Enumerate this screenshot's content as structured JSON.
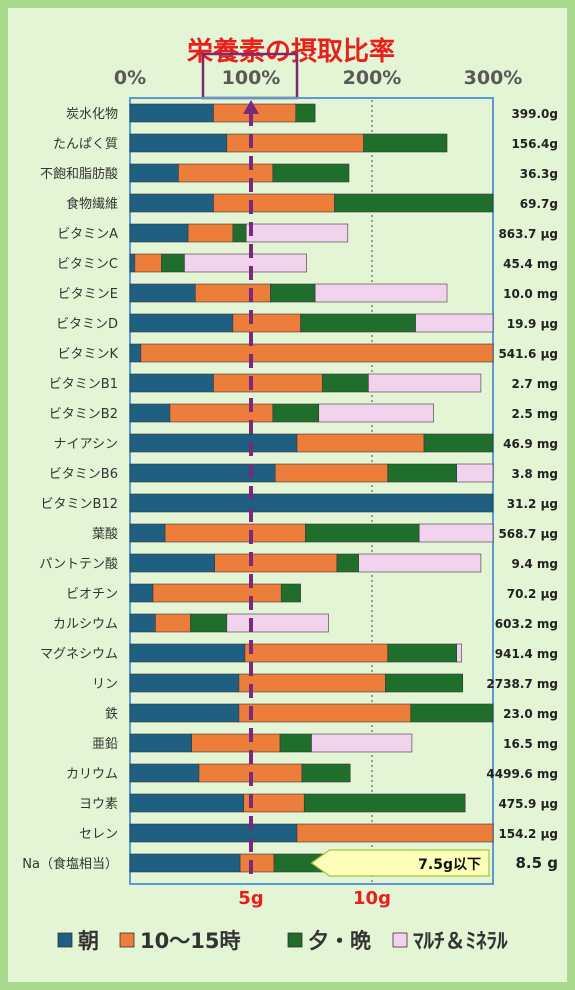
{
  "chart_data": {
    "type": "bar",
    "stacked": true,
    "orientation": "horizontal",
    "title": "栄養素の摂取比率",
    "x_ticks": [
      "0%",
      "100%",
      "200%",
      "300%"
    ],
    "xlim": [
      0,
      300
    ],
    "grid": true,
    "reference_line": {
      "value": 100
    },
    "legend_position": "bottom",
    "series": [
      {
        "name": "朝",
        "color": "#1f5f82"
      },
      {
        "name": "10～15時",
        "color": "#ec7d3a"
      },
      {
        "name": "夕・晩",
        "color": "#1f6e2c"
      },
      {
        "name": "ﾏﾙﾁ＆ﾐﾈﾗﾙ",
        "color": "#f2d3ee"
      }
    ],
    "categories": [
      "炭水化物",
      "たんぱく質",
      "不飽和脂肪酸",
      "食物繊維",
      "ビタミンA",
      "ビタミンC",
      "ビタミンE",
      "ビタミンD",
      "ビタミンK",
      "ビタミンB1",
      "ビタミンB2",
      "ナイアシン",
      "ビタミンB6",
      "ビタミンB12",
      "葉酸",
      "パントテン酸",
      "ビオチン",
      "カルシウム",
      "マグネシウム",
      "リン",
      "鉄",
      "亜鉛",
      "カリウム",
      "ヨウ素",
      "セレン",
      "Na（食塩相当）"
    ],
    "intake_amounts": [
      "399.0g",
      "156.4g",
      "36.3g",
      "69.7g",
      "863.7 μg",
      "45.4 mg",
      "10.0 mg",
      "19.9 μg",
      "541.6 μg",
      "2.7 mg",
      "2.5 mg",
      "46.9 mg",
      "3.8 mg",
      "31.2 μg",
      "568.7 μg",
      "9.4 mg",
      "70.2 μg",
      "603.2 mg",
      "941.4 mg",
      "2738.7 mg",
      "23.0 mg",
      "16.5 mg",
      "4499.6 mg",
      "475.9 μg",
      "154.2 μg",
      "8.5 g"
    ],
    "values": [
      [
        69,
        68,
        16,
        0
      ],
      [
        80,
        113,
        69,
        0
      ],
      [
        40,
        78,
        63,
        0
      ],
      [
        69,
        100,
        133,
        0
      ],
      [
        48,
        37,
        11,
        84
      ],
      [
        4,
        22,
        19,
        101
      ],
      [
        54,
        62,
        37,
        109
      ],
      [
        85,
        56,
        95,
        66
      ],
      [
        9,
        300,
        0,
        0
      ],
      [
        69,
        90,
        38,
        93
      ],
      [
        33,
        85,
        38,
        95
      ],
      [
        138,
        105,
        60,
        0
      ],
      [
        120,
        93,
        57,
        31
      ],
      [
        300,
        0,
        0,
        0
      ],
      [
        29,
        116,
        94,
        64
      ],
      [
        70,
        101,
        18,
        101
      ],
      [
        19,
        106,
        16,
        0
      ],
      [
        21,
        29,
        30,
        84
      ],
      [
        95,
        118,
        57,
        4
      ],
      [
        90,
        121,
        64,
        0
      ],
      [
        90,
        142,
        70,
        0
      ],
      [
        51,
        73,
        26,
        83
      ],
      [
        57,
        85,
        40,
        0
      ],
      [
        94,
        50,
        133,
        0
      ],
      [
        138,
        165,
        0,
        0
      ],
      [
        91,
        28,
        51,
        0
      ]
    ],
    "sodium_axis": {
      "ticks": [
        "5g",
        "10g"
      ],
      "tick_values": [
        5,
        10
      ],
      "xlim": [
        0,
        15
      ]
    },
    "sodium_annotation": {
      "text": "7.5g以下",
      "value": 7.5
    }
  }
}
